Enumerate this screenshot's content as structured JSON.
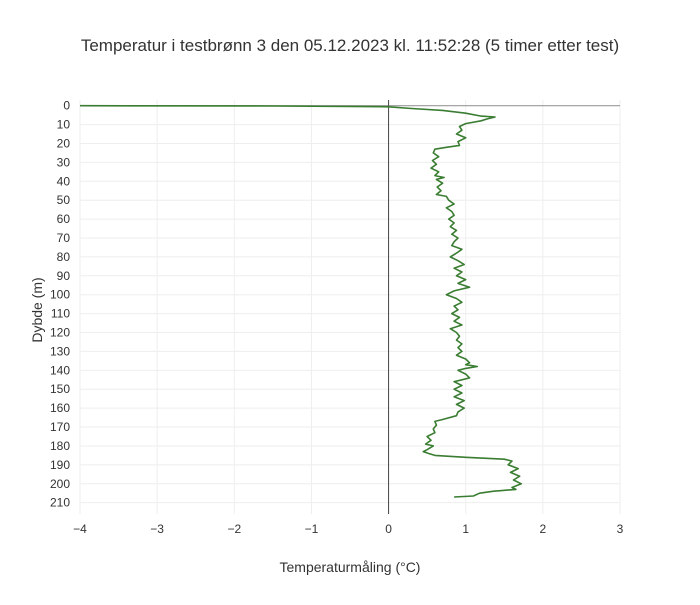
{
  "chart_data": {
    "type": "line",
    "title": "Temperatur i testbrønn 3 den 05.12.2023 kl. 11:52:28 (5 timer etter test)",
    "xlabel": "Temperaturmåling (°C)",
    "ylabel": "Dybde (m)",
    "xlim": [
      -4,
      3
    ],
    "ylim": [
      216,
      -3
    ],
    "y_reversed": true,
    "grid": true,
    "legend": "none",
    "x_ticks": [
      -4,
      -3,
      -2,
      -1,
      0,
      1,
      2,
      3
    ],
    "y_ticks": [
      0,
      10,
      20,
      30,
      40,
      50,
      60,
      70,
      80,
      90,
      100,
      110,
      120,
      130,
      140,
      150,
      160,
      170,
      180,
      190,
      200,
      210
    ],
    "reference_lines": {
      "x_zero_color": "#444444",
      "y_zero_color": "#999999"
    },
    "series": [
      {
        "color": "#3a7d32",
        "points": [
          [
            -4.0,
            0.0
          ],
          [
            -3.4,
            0.05
          ],
          [
            -1.5,
            0.2
          ],
          [
            -0.5,
            0.4
          ],
          [
            0.0,
            0.6
          ],
          [
            0.3,
            1.5
          ],
          [
            0.7,
            2.5
          ],
          [
            1.0,
            4.0
          ],
          [
            1.2,
            5.5
          ],
          [
            1.38,
            6.0
          ],
          [
            1.28,
            7.0
          ],
          [
            1.2,
            8.0
          ],
          [
            1.0,
            9.5
          ],
          [
            0.92,
            11.0
          ],
          [
            0.95,
            13.0
          ],
          [
            0.88,
            15.0
          ],
          [
            1.0,
            17.0
          ],
          [
            0.9,
            19.0
          ],
          [
            0.92,
            21.0
          ],
          [
            0.75,
            22.0
          ],
          [
            0.6,
            23.0
          ],
          [
            0.58,
            25.0
          ],
          [
            0.65,
            27.0
          ],
          [
            0.57,
            29.0
          ],
          [
            0.62,
            31.0
          ],
          [
            0.55,
            33.0
          ],
          [
            0.65,
            35.0
          ],
          [
            0.6,
            37.0
          ],
          [
            0.72,
            38.0
          ],
          [
            0.62,
            39.0
          ],
          [
            0.7,
            41.0
          ],
          [
            0.63,
            43.0
          ],
          [
            0.68,
            45.0
          ],
          [
            0.62,
            47.0
          ],
          [
            0.75,
            48.0
          ],
          [
            0.78,
            50.0
          ],
          [
            0.85,
            52.0
          ],
          [
            0.75,
            54.0
          ],
          [
            0.82,
            56.0
          ],
          [
            0.85,
            58.0
          ],
          [
            0.78,
            60.0
          ],
          [
            0.85,
            62.0
          ],
          [
            0.8,
            64.0
          ],
          [
            0.88,
            66.0
          ],
          [
            0.82,
            68.0
          ],
          [
            0.9,
            70.0
          ],
          [
            0.85,
            72.0
          ],
          [
            0.82,
            74.0
          ],
          [
            0.95,
            76.0
          ],
          [
            0.88,
            78.0
          ],
          [
            0.8,
            80.0
          ],
          [
            0.9,
            82.0
          ],
          [
            0.98,
            84.0
          ],
          [
            0.85,
            86.0
          ],
          [
            0.95,
            88.0
          ],
          [
            0.88,
            90.0
          ],
          [
            1.0,
            92.0
          ],
          [
            0.9,
            94.0
          ],
          [
            1.05,
            96.0
          ],
          [
            0.85,
            98.0
          ],
          [
            0.75,
            100.0
          ],
          [
            0.88,
            102.0
          ],
          [
            0.95,
            104.0
          ],
          [
            0.85,
            106.0
          ],
          [
            0.9,
            108.0
          ],
          [
            0.82,
            110.0
          ],
          [
            0.92,
            112.0
          ],
          [
            0.85,
            114.0
          ],
          [
            0.95,
            116.0
          ],
          [
            0.8,
            118.0
          ],
          [
            0.88,
            120.0
          ],
          [
            0.92,
            122.0
          ],
          [
            0.88,
            124.0
          ],
          [
            0.95,
            126.0
          ],
          [
            0.9,
            128.0
          ],
          [
            0.95,
            130.0
          ],
          [
            0.88,
            132.0
          ],
          [
            1.0,
            134.0
          ],
          [
            1.05,
            136.0
          ],
          [
            1.0,
            137.0
          ],
          [
            1.15,
            138.0
          ],
          [
            1.0,
            139.0
          ],
          [
            0.9,
            140.0
          ],
          [
            1.0,
            142.0
          ],
          [
            1.05,
            144.0
          ],
          [
            0.95,
            145.0
          ],
          [
            0.85,
            146.0
          ],
          [
            0.95,
            148.0
          ],
          [
            0.85,
            150.0
          ],
          [
            0.95,
            152.0
          ],
          [
            0.85,
            154.0
          ],
          [
            0.98,
            156.0
          ],
          [
            0.88,
            158.0
          ],
          [
            0.98,
            160.0
          ],
          [
            0.9,
            162.0
          ],
          [
            0.88,
            164.0
          ],
          [
            0.7,
            166.0
          ],
          [
            0.6,
            167.0
          ],
          [
            0.62,
            169.0
          ],
          [
            0.58,
            171.0
          ],
          [
            0.6,
            173.0
          ],
          [
            0.5,
            175.0
          ],
          [
            0.55,
            177.0
          ],
          [
            0.48,
            179.0
          ],
          [
            0.58,
            180.0
          ],
          [
            0.5,
            182.0
          ],
          [
            0.45,
            183.0
          ],
          [
            0.52,
            184.0
          ],
          [
            0.6,
            185.0
          ],
          [
            1.0,
            186.0
          ],
          [
            1.5,
            187.0
          ],
          [
            1.6,
            188.0
          ],
          [
            1.55,
            190.0
          ],
          [
            1.68,
            192.0
          ],
          [
            1.58,
            194.0
          ],
          [
            1.7,
            196.0
          ],
          [
            1.62,
            198.0
          ],
          [
            1.72,
            200.0
          ],
          [
            1.6,
            202.0
          ],
          [
            1.65,
            203.0
          ],
          [
            1.35,
            204.0
          ],
          [
            1.18,
            205.0
          ],
          [
            1.1,
            206.5
          ],
          [
            0.85,
            207.0
          ]
        ]
      }
    ]
  }
}
